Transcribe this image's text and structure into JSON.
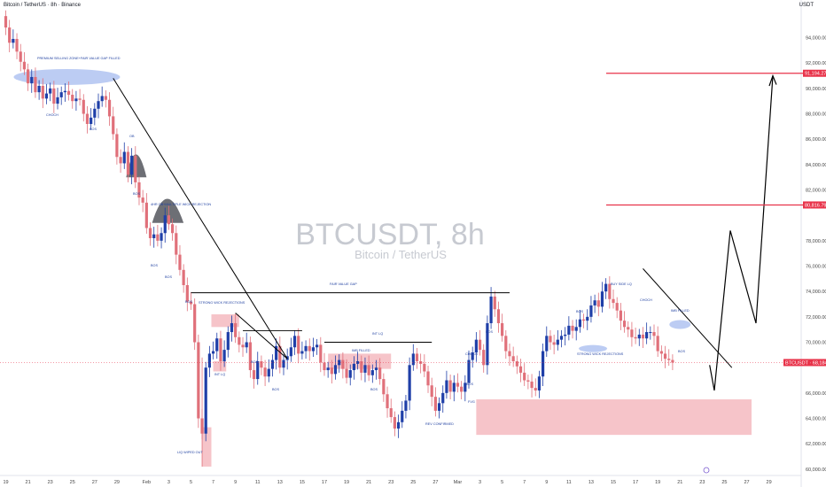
{
  "header": {
    "symbol_line": "Bitcoin / TetherUS · 8h · Binance",
    "currency": "USDT"
  },
  "watermark": {
    "title": "BTCUSDT, 8h",
    "subtitle": "Bitcoin / TetherUS"
  },
  "colors": {
    "up": "#1f3fa8",
    "down": "#e0707a",
    "level_line": "#e8334a",
    "zone_fill": "#f6c4c9",
    "blue_ellipse": "#9fb6ee",
    "gray_fill": "#6d6f75",
    "trend_line": "#000000",
    "price_tag": "#e8334a"
  },
  "chart_data": {
    "type": "candlestick",
    "title": "BTCUSDT, 8h",
    "ylim": [
      59500,
      96200
    ],
    "y_ticks": [
      {
        "value": 94000,
        "label": "94,000.00"
      },
      {
        "value": 92000,
        "label": "92,000.00"
      },
      {
        "value": 90000,
        "label": "90,000.00"
      },
      {
        "value": 88000,
        "label": "88,000.00"
      },
      {
        "value": 86000,
        "label": "86,000.00"
      },
      {
        "value": 84000,
        "label": "84,000.00"
      },
      {
        "value": 82000,
        "label": "82,000.00"
      },
      {
        "value": 78000,
        "label": "78,000.00"
      },
      {
        "value": 76000,
        "label": "76,000.00"
      },
      {
        "value": 74000,
        "label": "74,000.00"
      },
      {
        "value": 72000,
        "label": "72,000.00"
      },
      {
        "value": 70000,
        "label": "70,000.00"
      },
      {
        "value": 66000,
        "label": "66,000.00"
      },
      {
        "value": 64000,
        "label": "64,000.00"
      },
      {
        "value": 62000,
        "label": "62,000.00"
      },
      {
        "value": 60000,
        "label": "60,000.00"
      }
    ],
    "x_ticks": [
      {
        "slot": 0,
        "label": "19"
      },
      {
        "slot": 6,
        "label": "21"
      },
      {
        "slot": 12,
        "label": "23"
      },
      {
        "slot": 18,
        "label": "25"
      },
      {
        "slot": 24,
        "label": "27"
      },
      {
        "slot": 30,
        "label": "29"
      },
      {
        "slot": 38,
        "label": "Feb"
      },
      {
        "slot": 44,
        "label": "3"
      },
      {
        "slot": 50,
        "label": "5"
      },
      {
        "slot": 56,
        "label": "7"
      },
      {
        "slot": 62,
        "label": "9"
      },
      {
        "slot": 68,
        "label": "11"
      },
      {
        "slot": 74,
        "label": "13"
      },
      {
        "slot": 80,
        "label": "15"
      },
      {
        "slot": 86,
        "label": "17"
      },
      {
        "slot": 92,
        "label": "19"
      },
      {
        "slot": 98,
        "label": "21"
      },
      {
        "slot": 104,
        "label": "23"
      },
      {
        "slot": 110,
        "label": "25"
      },
      {
        "slot": 116,
        "label": "27"
      },
      {
        "slot": 122,
        "label": "Mar"
      },
      {
        "slot": 128,
        "label": "3"
      },
      {
        "slot": 134,
        "label": "5"
      },
      {
        "slot": 140,
        "label": "7"
      },
      {
        "slot": 146,
        "label": "9"
      },
      {
        "slot": 152,
        "label": "11"
      },
      {
        "slot": 158,
        "label": "13"
      },
      {
        "slot": 164,
        "label": "15"
      },
      {
        "slot": 170,
        "label": "17"
      },
      {
        "slot": 176,
        "label": "19"
      },
      {
        "slot": 182,
        "label": "21"
      },
      {
        "slot": 188,
        "label": "23"
      },
      {
        "slot": 194,
        "label": "25"
      },
      {
        "slot": 200,
        "label": "27"
      },
      {
        "slot": 206,
        "label": "29"
      }
    ],
    "closes": [
      94800,
      93600,
      93900,
      92900,
      92100,
      91500,
      90400,
      90900,
      89700,
      90200,
      89200,
      89600,
      90000,
      88800,
      89300,
      89700,
      89800,
      89500,
      89000,
      89200,
      89100,
      88000,
      87200,
      87700,
      88400,
      89000,
      89400,
      89100,
      87800,
      86400,
      84600,
      84100,
      85000,
      83200,
      84700,
      82600,
      81400,
      81000,
      79000,
      78200,
      78500,
      78000,
      78600,
      80000,
      79300,
      78600,
      76900,
      75700,
      74500,
      73200,
      73000,
      70000,
      64000,
      62800,
      68000,
      69100,
      69300,
      70300,
      68500,
      69400,
      70800,
      71500,
      70400,
      69800,
      69600,
      70000,
      67800,
      67100,
      68500,
      68000,
      67300,
      67900,
      68600,
      69700,
      68000,
      68600,
      68900,
      69600,
      70500,
      69100,
      69300,
      69700,
      69300,
      69600,
      69800,
      68400,
      67800,
      68000,
      67500,
      68200,
      68600,
      67900,
      67200,
      67800,
      68300,
      68500,
      67600,
      68200,
      67400,
      67800,
      68000,
      67100,
      65900,
      64800,
      64100,
      63200,
      63700,
      64600,
      65400,
      68200,
      69100,
      68500,
      68300,
      67700,
      66600,
      65700,
      64600,
      65200,
      66000,
      67000,
      66100,
      66800,
      66500,
      66100,
      66800,
      68600,
      69200,
      70200,
      69400,
      68200,
      71500,
      73600,
      72600,
      71500,
      70500,
      69300,
      68900,
      68500,
      68100,
      67600,
      67000,
      66900,
      66400,
      66200,
      67300,
      69300,
      70500,
      70000,
      69800,
      70200,
      70500,
      70600,
      71300,
      70900,
      71200,
      71800,
      71700,
      72000,
      72900,
      73300,
      72800,
      74000,
      74600,
      73400,
      73100,
      72500,
      71700,
      71200,
      71000,
      70400,
      70300,
      70600,
      70300,
      70800,
      70800,
      70500,
      69300,
      69100,
      68700,
      68600,
      68400
    ],
    "last_price_label": "BTCUSDT · 68,184.18",
    "levels": [
      {
        "value": 91194.27,
        "label": "91,194.27"
      },
      {
        "value": 80816.79,
        "label": "80,816.79"
      }
    ],
    "annotations": [
      "PREMIUM SELLING ZONE+FAIR VALUE GAP FILLED",
      "CHOCH",
      "BOS",
      "OB",
      "BOS",
      "4HR OB+MULTIPLE WICK REJECTION",
      "BOS",
      "BOS",
      "BOS",
      "STRONG WICK REJECTIONS",
      "LIQ WIPED OUT",
      "INT LQ",
      "BOS",
      "BOS",
      "BOS",
      "FAIR VALUE GAP",
      "INT LQ",
      "IMB FILLED",
      "BOS",
      "CHOCH",
      "BOS",
      "REV CONFIRMED",
      "FVG",
      "BUY SIDE LQ",
      "BOS",
      "CHOCH",
      "STRONG WICK REJECTIONS",
      "IMB FILLED",
      "BOS"
    ]
  }
}
